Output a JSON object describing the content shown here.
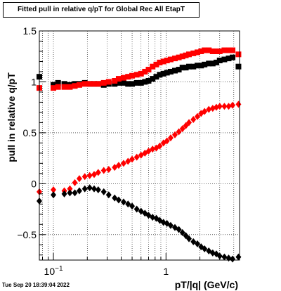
{
  "timestamp": "Tue Sep 20 18:39:04 2022",
  "chart_data": {
    "type": "scatter",
    "title": "Fitted pull in relative q/pT for Global Rec All EtapT",
    "xlabel": "pT/|q| (GeV/c)",
    "ylabel": "pull in relative q/pT",
    "xscale": "log",
    "xlim": [
      0.075,
      4.5
    ],
    "ylim": [
      -0.75,
      1.5
    ],
    "grid": true,
    "x_ticks": [
      {
        "v": 0.1,
        "label": "10",
        "sup": "−1"
      },
      {
        "v": 1,
        "label": "1",
        "sup": ""
      }
    ],
    "y_ticks": [
      {
        "v": 1.5,
        "label": "1.5"
      },
      {
        "v": 1,
        "label": "1"
      },
      {
        "v": 0.5,
        "label": "0.5"
      },
      {
        "v": 0,
        "label": "0"
      },
      {
        "v": -0.5,
        "label": "−0.5"
      }
    ],
    "series": [
      {
        "marker": "square",
        "color": "#000000",
        "points": [
          [
            0.075,
            1.05
          ],
          [
            0.1,
            0.97
          ],
          [
            0.11,
            0.99
          ],
          [
            0.125,
            0.98
          ],
          [
            0.14,
            0.97
          ],
          [
            0.155,
            0.98
          ],
          [
            0.17,
            0.98
          ],
          [
            0.19,
            0.99
          ],
          [
            0.21,
            0.98
          ],
          [
            0.23,
            0.98
          ],
          [
            0.25,
            0.98
          ],
          [
            0.28,
            0.97
          ],
          [
            0.31,
            0.98
          ],
          [
            0.35,
            0.98
          ],
          [
            0.38,
            0.99
          ],
          [
            0.42,
            0.99
          ],
          [
            0.46,
            0.98
          ],
          [
            0.5,
            0.98
          ],
          [
            0.55,
            0.99
          ],
          [
            0.6,
            0.99
          ],
          [
            0.65,
            1.0
          ],
          [
            0.7,
            1.01
          ],
          [
            0.76,
            1.03
          ],
          [
            0.82,
            1.05
          ],
          [
            0.88,
            1.07
          ],
          [
            0.95,
            1.08
          ],
          [
            1.02,
            1.09
          ],
          [
            1.1,
            1.1
          ],
          [
            1.2,
            1.11
          ],
          [
            1.3,
            1.12
          ],
          [
            1.4,
            1.14
          ],
          [
            1.5,
            1.14
          ],
          [
            1.6,
            1.15
          ],
          [
            1.75,
            1.15
          ],
          [
            1.9,
            1.16
          ],
          [
            2.05,
            1.16
          ],
          [
            2.2,
            1.17
          ],
          [
            2.4,
            1.18
          ],
          [
            2.6,
            1.18
          ],
          [
            2.8,
            1.19
          ],
          [
            3.0,
            1.21
          ],
          [
            3.3,
            1.22
          ],
          [
            3.6,
            1.23
          ],
          [
            3.9,
            1.24
          ],
          [
            4.4,
            1.15
          ]
        ]
      },
      {
        "marker": "square",
        "color": "#ff0000",
        "points": [
          [
            0.075,
            0.94
          ],
          [
            0.1,
            0.94
          ],
          [
            0.11,
            0.95
          ],
          [
            0.125,
            0.95
          ],
          [
            0.14,
            0.95
          ],
          [
            0.155,
            0.96
          ],
          [
            0.17,
            0.97
          ],
          [
            0.19,
            0.98
          ],
          [
            0.21,
            0.98
          ],
          [
            0.23,
            0.98
          ],
          [
            0.25,
            0.98
          ],
          [
            0.28,
            0.99
          ],
          [
            0.31,
            1.0
          ],
          [
            0.35,
            1.01
          ],
          [
            0.38,
            1.03
          ],
          [
            0.42,
            1.04
          ],
          [
            0.46,
            1.05
          ],
          [
            0.5,
            1.06
          ],
          [
            0.55,
            1.07
          ],
          [
            0.6,
            1.08
          ],
          [
            0.65,
            1.1
          ],
          [
            0.7,
            1.12
          ],
          [
            0.76,
            1.15
          ],
          [
            0.82,
            1.17
          ],
          [
            0.88,
            1.19
          ],
          [
            0.95,
            1.2
          ],
          [
            1.02,
            1.21
          ],
          [
            1.1,
            1.22
          ],
          [
            1.2,
            1.23
          ],
          [
            1.3,
            1.24
          ],
          [
            1.4,
            1.25
          ],
          [
            1.5,
            1.26
          ],
          [
            1.6,
            1.27
          ],
          [
            1.75,
            1.28
          ],
          [
            1.9,
            1.29
          ],
          [
            2.05,
            1.3
          ],
          [
            2.2,
            1.31
          ],
          [
            2.4,
            1.31
          ],
          [
            2.6,
            1.3
          ],
          [
            2.8,
            1.3
          ],
          [
            3.0,
            1.3
          ],
          [
            3.3,
            1.31
          ],
          [
            3.6,
            1.31
          ],
          [
            3.9,
            1.31
          ],
          [
            4.4,
            1.27
          ]
        ]
      },
      {
        "marker": "diamond",
        "color": "#ff0000",
        "points": [
          [
            0.075,
            -0.08
          ],
          [
            0.1,
            -0.06
          ],
          [
            0.125,
            -0.07
          ],
          [
            0.14,
            -0.05
          ],
          [
            0.155,
            0.01
          ],
          [
            0.17,
            0.05
          ],
          [
            0.19,
            0.07
          ],
          [
            0.21,
            0.08
          ],
          [
            0.23,
            0.09
          ],
          [
            0.25,
            0.11
          ],
          [
            0.28,
            0.13
          ],
          [
            0.31,
            0.14
          ],
          [
            0.35,
            0.16
          ],
          [
            0.38,
            0.18
          ],
          [
            0.42,
            0.2
          ],
          [
            0.46,
            0.22
          ],
          [
            0.5,
            0.24
          ],
          [
            0.55,
            0.26
          ],
          [
            0.6,
            0.28
          ],
          [
            0.65,
            0.3
          ],
          [
            0.7,
            0.32
          ],
          [
            0.76,
            0.34
          ],
          [
            0.82,
            0.35
          ],
          [
            0.88,
            0.37
          ],
          [
            0.95,
            0.4
          ],
          [
            1.02,
            0.42
          ],
          [
            1.1,
            0.45
          ],
          [
            1.2,
            0.48
          ],
          [
            1.3,
            0.51
          ],
          [
            1.4,
            0.54
          ],
          [
            1.5,
            0.57
          ],
          [
            1.6,
            0.6
          ],
          [
            1.75,
            0.63
          ],
          [
            1.9,
            0.66
          ],
          [
            2.05,
            0.69
          ],
          [
            2.2,
            0.71
          ],
          [
            2.4,
            0.73
          ],
          [
            2.6,
            0.74
          ],
          [
            2.8,
            0.75
          ],
          [
            3.0,
            0.76
          ],
          [
            3.3,
            0.76
          ],
          [
            3.6,
            0.76
          ],
          [
            3.9,
            0.77
          ],
          [
            4.4,
            0.78
          ]
        ]
      },
      {
        "marker": "diamond",
        "color": "#000000",
        "points": [
          [
            0.075,
            -0.17
          ],
          [
            0.1,
            -0.11
          ],
          [
            0.125,
            -0.1
          ],
          [
            0.14,
            -0.09
          ],
          [
            0.155,
            -0.09
          ],
          [
            0.17,
            -0.07
          ],
          [
            0.19,
            -0.05
          ],
          [
            0.21,
            -0.04
          ],
          [
            0.23,
            -0.05
          ],
          [
            0.25,
            -0.06
          ],
          [
            0.28,
            -0.08
          ],
          [
            0.31,
            -0.11
          ],
          [
            0.35,
            -0.14
          ],
          [
            0.38,
            -0.16
          ],
          [
            0.42,
            -0.18
          ],
          [
            0.46,
            -0.2
          ],
          [
            0.5,
            -0.22
          ],
          [
            0.55,
            -0.25
          ],
          [
            0.6,
            -0.27
          ],
          [
            0.65,
            -0.29
          ],
          [
            0.7,
            -0.31
          ],
          [
            0.76,
            -0.33
          ],
          [
            0.82,
            -0.34
          ],
          [
            0.88,
            -0.36
          ],
          [
            0.95,
            -0.38
          ],
          [
            1.02,
            -0.39
          ],
          [
            1.1,
            -0.41
          ],
          [
            1.2,
            -0.43
          ],
          [
            1.3,
            -0.45
          ],
          [
            1.4,
            -0.48
          ],
          [
            1.5,
            -0.51
          ],
          [
            1.6,
            -0.54
          ],
          [
            1.75,
            -0.57
          ],
          [
            1.9,
            -0.59
          ],
          [
            2.05,
            -0.62
          ],
          [
            2.2,
            -0.64
          ],
          [
            2.4,
            -0.66
          ],
          [
            2.6,
            -0.68
          ],
          [
            2.8,
            -0.69
          ],
          [
            3.0,
            -0.71
          ],
          [
            3.3,
            -0.72
          ],
          [
            3.6,
            -0.73
          ],
          [
            3.9,
            -0.74
          ],
          [
            4.4,
            -0.72
          ]
        ]
      }
    ]
  }
}
